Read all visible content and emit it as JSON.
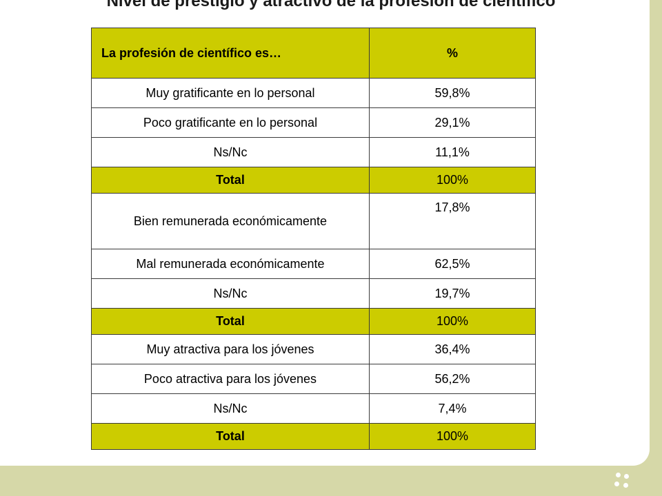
{
  "title": "Nivel de prestigio y atractivo de la profesión de científico",
  "table": {
    "headers": [
      "La profesión de científico es…",
      "%"
    ],
    "rows": [
      {
        "label": "Muy gratificante en lo personal",
        "value": "59,8%",
        "total": false
      },
      {
        "label": "Poco gratificante en lo personal",
        "value": "29,1%",
        "total": false
      },
      {
        "label": "Ns/Nc",
        "value": "11,1%",
        "total": false
      },
      {
        "label": "Total",
        "value": "100%",
        "total": true
      },
      {
        "label": "Bien remunerada económicamente",
        "value": "17,8%",
        "total": false
      },
      {
        "label": "Mal remunerada económicamente",
        "value": "62,5%",
        "total": false
      },
      {
        "label": "Ns/Nc",
        "value": "19,7%",
        "total": false
      },
      {
        "label": "Total",
        "value": "100%",
        "total": true
      },
      {
        "label": "Muy atractiva para los jóvenes",
        "value": "36,4%",
        "total": false
      },
      {
        "label": "Poco atractiva para los jóvenes",
        "value": "56,2%",
        "total": false
      },
      {
        "label": "Ns/Nc",
        "value": "7,4%",
        "total": false
      },
      {
        "label": "Total",
        "value": "100%",
        "total": true
      }
    ]
  },
  "colors": {
    "header_fill": "#cccc00",
    "background": "#d6d8a8"
  },
  "decor": {
    "corner_icon": "dots-icon"
  }
}
